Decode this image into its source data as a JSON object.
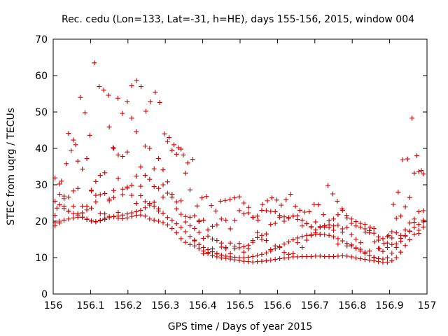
{
  "chart_data": {
    "type": "scatter",
    "title": "Rec. cedu (Lon=133, Lat=-31, h=HE), days 155-156, 2015, window 004",
    "xlabel": "GPS time / Days of year 2015",
    "ylabel": "STEC from uqrg / TECUs",
    "xlim": [
      156,
      157
    ],
    "ylim": [
      0,
      70
    ],
    "xticks": [
      "156",
      "156.1",
      "156.2",
      "156.3",
      "156.4",
      "156.5",
      "156.6",
      "156.7",
      "156.8",
      "156.9",
      "157"
    ],
    "yticks": [
      "0",
      "10",
      "20",
      "30",
      "40",
      "50",
      "60",
      "70"
    ],
    "grid": false,
    "legend": "none",
    "marker": "plus",
    "color": "#cc0000",
    "series": [
      {
        "x": [
          156.005,
          156.017,
          156.029,
          156.041,
          156.054,
          156.066,
          156.078,
          156.09,
          156.102,
          156.114,
          156.126,
          156.138,
          156.15,
          156.162,
          156.174,
          156.186,
          156.198,
          156.21,
          156.222,
          156.234,
          156.246,
          156.258,
          156.27,
          156.282,
          156.294,
          156.306,
          156.318,
          156.33,
          156.342,
          156.354,
          156.366,
          156.378,
          156.39,
          156.402,
          156.414,
          156.426,
          156.438,
          156.45,
          156.462,
          156.474,
          156.486,
          156.498,
          156.51,
          156.522,
          156.534,
          156.546,
          156.558,
          156.57,
          156.582,
          156.594,
          156.606,
          156.618,
          156.63,
          156.642,
          156.654,
          156.666,
          156.678,
          156.69,
          156.702,
          156.714,
          156.726,
          156.738,
          156.75,
          156.762,
          156.774,
          156.786,
          156.798,
          156.81,
          156.822,
          156.834,
          156.846,
          156.858,
          156.87,
          156.882,
          156.894,
          156.906,
          156.918,
          156.93,
          156.942,
          156.954,
          156.966,
          156.978,
          156.99
        ],
        "y": [
          19.6,
          20.0,
          20.3,
          20.6,
          20.9,
          21.1,
          21.1,
          20.6,
          20.1,
          19.9,
          20.3,
          20.8,
          21.3,
          21.2,
          20.8,
          20.7,
          20.9,
          21.3,
          21.6,
          21.7,
          21.4,
          20.6,
          20.3,
          20.0,
          19.6,
          19.0,
          18.0,
          16.8,
          15.2,
          14.2,
          13.6,
          13.2,
          12.4,
          11.8,
          11.1,
          10.5,
          10.2,
          9.9,
          9.8,
          9.6,
          9.4,
          9.2,
          9.0,
          8.9,
          8.8,
          8.9,
          9.0,
          9.1,
          9.3,
          9.5,
          9.7,
          9.9,
          10.0,
          10.2,
          10.2,
          10.3,
          10.3,
          10.3,
          10.4,
          10.4,
          10.3,
          10.3,
          10.3,
          10.4,
          10.5,
          10.4,
          10.2,
          9.9,
          9.7,
          9.5,
          9.3,
          9.1,
          8.9,
          8.7,
          8.7,
          9.1,
          10.0,
          11.5,
          13.3,
          14.9,
          16.4,
          17.5,
          18.4
        ]
      },
      {
        "x": [
          156.005,
          156.017,
          156.029,
          156.041,
          156.054,
          156.066,
          156.078,
          156.09,
          156.102,
          156.114,
          156.126,
          156.138,
          156.15,
          156.162,
          156.174,
          156.186,
          156.198,
          156.21,
          156.222,
          156.234,
          156.246,
          156.258,
          156.27,
          156.282,
          156.294,
          156.306,
          156.318,
          156.33,
          156.342,
          156.354,
          156.366,
          156.378,
          156.39,
          156.402,
          156.414,
          156.426,
          156.438,
          156.45,
          156.462,
          156.474,
          156.486,
          156.498,
          156.51,
          156.522,
          156.534,
          156.546,
          156.558,
          156.57,
          156.582,
          156.594,
          156.606,
          156.618,
          156.63,
          156.642,
          156.654,
          156.666,
          156.678,
          156.69,
          156.702,
          156.714,
          156.726,
          156.738,
          156.75,
          156.762,
          156.774,
          156.786,
          156.798,
          156.81,
          156.822,
          156.834,
          156.846,
          156.858,
          156.87,
          156.882,
          156.894,
          156.906,
          156.918,
          156.93,
          156.942,
          156.954,
          156.966,
          156.978,
          156.99
        ],
        "y": [
          25.5,
          24.5,
          23.5,
          22.8,
          22.1,
          21.7,
          21.1,
          20.5,
          20.0,
          19.8,
          20.1,
          20.5,
          21.0,
          21.3,
          21.4,
          21.7,
          22.0,
          22.3,
          22.6,
          23.0,
          23.7,
          24.4,
          24.0,
          23.4,
          22.2,
          21.0,
          20.2,
          19.3,
          18.3,
          17.1,
          15.8,
          14.6,
          13.6,
          12.8,
          12.2,
          11.6,
          11.1,
          10.7,
          10.4,
          10.2,
          10.1,
          10.0,
          10.0,
          10.1,
          10.3,
          10.6,
          10.9,
          11.3,
          11.8,
          12.4,
          13.0,
          13.7,
          14.3,
          14.9,
          15.4,
          15.8,
          16.1,
          16.3,
          16.4,
          16.4,
          16.3,
          16.1,
          15.7,
          15.2,
          14.6,
          13.9,
          13.2,
          12.5,
          11.8,
          11.1,
          10.5,
          10.0,
          9.7,
          9.6,
          10.0,
          11.2,
          12.8,
          14.5,
          16.1,
          17.3,
          18.3,
          19.1,
          19.8
        ]
      },
      {
        "x": [
          156.005,
          156.017,
          156.029,
          156.041,
          156.054,
          156.066,
          156.078,
          156.09,
          156.102,
          156.114,
          156.126,
          156.138,
          156.15,
          156.162,
          156.174,
          156.186,
          156.198,
          156.21,
          156.222,
          156.234,
          156.246,
          156.258,
          156.27,
          156.282,
          156.294,
          156.306,
          156.318,
          156.33,
          156.342,
          156.354,
          156.366,
          156.378,
          156.39,
          156.402,
          156.414,
          156.426,
          156.438,
          156.45,
          156.462,
          156.474,
          156.486,
          156.498,
          156.51,
          156.522,
          156.534,
          156.546,
          156.558,
          156.57,
          156.582,
          156.594,
          156.606,
          156.618,
          156.63,
          156.642,
          156.654,
          156.666,
          156.678,
          156.69,
          156.702,
          156.714,
          156.726,
          156.738,
          156.75,
          156.762,
          156.774,
          156.786,
          156.798,
          156.81,
          156.822,
          156.834,
          156.846,
          156.858,
          156.87,
          156.882,
          156.894,
          156.906,
          156.918,
          156.93,
          156.942,
          156.954,
          156.966,
          156.978,
          156.99
        ],
        "y": [
          18.7,
          19.5,
          24.1,
          26.6,
          28.3,
          22.1,
          24.1,
          23.1,
          23.6,
          25.3,
          22.1,
          22.0,
          26.1,
          26.5,
          22.4,
          27.3,
          29.1,
          27.1,
          24.9,
          27.0,
          25.4,
          24.9,
          25.2,
          22.8,
          26.6,
          27.7,
          26.6,
          23.4,
          21.9,
          19.8,
          18.8,
          14.8,
          16.9,
          11.1,
          11.4,
          12.4,
          11.0,
          12.9,
          12.8,
          11.1,
          12.4,
          12.7,
          11.5,
          12.4,
          14.2,
          16.9,
          16.1,
          16.5,
          19.1,
          19.4,
          21.1,
          20.0,
          20.8,
          21.4,
          21.5,
          18.7,
          19.3,
          18.5,
          17.6,
          18.3,
          18.8,
          19.0,
          17.5,
          13.7,
          17.0,
          13.2,
          13.5,
          12.7,
          12.3,
          11.5,
          11.8,
          10.1,
          12.5,
          11.7,
          12.8,
          15.4,
          16.8,
          16.1,
          15.9,
          17.2,
          19.7,
          16.6,
          20.3
        ]
      },
      {
        "x": [
          156.005,
          156.017,
          156.029,
          156.041,
          156.054,
          156.066,
          156.078,
          156.09,
          156.102,
          156.114,
          156.126,
          156.138,
          156.15,
          156.162,
          156.174,
          156.186,
          156.198,
          156.21,
          156.222,
          156.234,
          156.246,
          156.258,
          156.27,
          156.282,
          156.294,
          156.306,
          156.318,
          156.33,
          156.342,
          156.354,
          156.366,
          156.378,
          156.39,
          156.402,
          156.414,
          156.426,
          156.438,
          156.45,
          156.462,
          156.474,
          156.486,
          156.498,
          156.51,
          156.522,
          156.534,
          156.546,
          156.558,
          156.57,
          156.582,
          156.594,
          156.606,
          156.618,
          156.63,
          156.642,
          156.654,
          156.666,
          156.678,
          156.69,
          156.702,
          156.714,
          156.726,
          156.738,
          156.75,
          156.762,
          156.774,
          156.786,
          156.798,
          156.81,
          156.822,
          156.834,
          156.846,
          156.858,
          156.87,
          156.882,
          156.894,
          156.906,
          156.918,
          156.93,
          156.942,
          156.954,
          156.966,
          156.978,
          156.99
        ],
        "y": [
          21.6,
          27.4,
          26.2,
          22.7,
          24.1,
          29.0,
          22.3,
          24.1,
          28.5,
          27.1,
          27.3,
          27.6,
          25.6,
          28.4,
          31.7,
          28.8,
          29.4,
          29.9,
          32.4,
          29.6,
          32.6,
          31.5,
          29.5,
          29.0,
          30.0,
          30.8,
          27.4,
          25.3,
          25.6,
          21.3,
          21.1,
          18.0,
          20.1,
          15.3,
          15.9,
          15.1,
          14.7,
          14.0,
          12.4,
          14.0,
          13.1,
          13.9,
          13.0,
          13.4,
          14.7,
          15.5,
          15.0,
          14.7,
          12.2,
          13.2,
          12.8,
          11.4,
          10.9,
          11.1,
          14.1,
          12.8,
          14.8,
          16.1,
          16.8,
          16.4,
          18.7,
          20.1,
          20.6,
          21.8,
          23.0,
          20.9,
          20.6,
          19.9,
          18.4,
          17.9,
          16.8,
          16.7,
          15.7,
          15.2,
          14.0,
          13.6,
          13.8,
          15.3,
          17.6,
          19.5,
          20.6,
          22.6,
          22.9
        ]
      },
      {
        "x": [
          156.005,
          156.017,
          156.029,
          156.041,
          156.054,
          156.066,
          156.078,
          156.09,
          156.102,
          156.114,
          156.126,
          156.138,
          156.15,
          156.162,
          156.174,
          156.186,
          156.198,
          156.21,
          156.222,
          156.234,
          156.246,
          156.258,
          156.27,
          156.282,
          156.294,
          156.306,
          156.318,
          156.33,
          156.342,
          156.354,
          156.366,
          156.378,
          156.39,
          156.402,
          156.414,
          156.426,
          156.438,
          156.45,
          156.462,
          156.474,
          156.486,
          156.498,
          156.51,
          156.522,
          156.534,
          156.546,
          156.558,
          156.57,
          156.582,
          156.594,
          156.606,
          156.618,
          156.63,
          156.642,
          156.654,
          156.666,
          156.678,
          156.69,
          156.702,
          156.714,
          156.726,
          156.738,
          156.75,
          156.762,
          156.774,
          156.786,
          156.798,
          156.81,
          156.822,
          156.834,
          156.846,
          156.858,
          156.87,
          156.882,
          156.894,
          156.906,
          156.918,
          156.93,
          156.942,
          156.954,
          156.966,
          156.978,
          156.99
        ],
        "y": [
          31.9,
          30.2,
          26.9,
          44.1,
          42.3,
          36.5,
          34.3,
          37.2,
          28.3,
          30.9,
          32.6,
          33.3,
          45.9,
          40.0,
          38.2,
          37.8,
          39.0,
          48.3,
          44.6,
          34.9,
          40.6,
          40.0,
          34.4,
          37.2,
          34.1,
          41.9,
          39.5,
          38.4,
          39.8,
          33.2,
          28.6,
          21.5,
          19.9,
          20.3,
          17.6,
          18.6,
          19.0,
          20.6,
          20.3,
          17.9,
          20.2,
          22.9,
          22.0,
          22.3,
          21.1,
          21.4,
          23.0,
          22.9,
          22.7,
          22.6,
          21.6,
          21.2,
          21.0,
          21.4,
          20.5,
          20.3,
          19.4,
          18.4,
          19.8,
          18.5,
          18.4,
          18.3,
          18.7,
          18.9,
          17.9,
          18.3,
          19.4,
          18.7,
          19.4,
          19.1,
          17.4,
          18.0,
          14.8,
          15.2,
          15.8,
          17.1,
          20.8,
          21.4,
          23.9,
          26.5,
          33.2,
          33.6,
          33.0
        ]
      },
      {
        "x": [
          156.01,
          156.022,
          156.035,
          156.048,
          156.06,
          156.073,
          156.085,
          156.098,
          156.11,
          156.123,
          156.135,
          156.148,
          156.16,
          156.173,
          156.185,
          156.198,
          156.21,
          156.223,
          156.235,
          156.248,
          156.26,
          156.273,
          156.285,
          156.298,
          156.31,
          156.323,
          156.335,
          156.348,
          156.36,
          156.373,
          156.385,
          156.398,
          156.41,
          156.423,
          156.435,
          156.448,
          156.46,
          156.473,
          156.485,
          156.498,
          156.51,
          156.523,
          156.535,
          156.548,
          156.56,
          156.573,
          156.585,
          156.598,
          156.61,
          156.623,
          156.635,
          156.648,
          156.66,
          156.673,
          156.685,
          156.698,
          156.71,
          156.723,
          156.735,
          156.748,
          156.76,
          156.773,
          156.785,
          156.798,
          156.81,
          156.823,
          156.835,
          156.848,
          156.86,
          156.873,
          156.885,
          156.898,
          156.91,
          156.923,
          156.935,
          156.948,
          156.96,
          156.973,
          156.985
        ],
        "y": [
          23.6,
          31.0,
          35.8,
          39.4,
          41.0,
          54.0,
          49.8,
          43.6,
          63.5,
          57.0,
          56.0,
          54.6,
          40.2,
          53.8,
          49.6,
          52.8,
          57.2,
          58.6,
          57.0,
          50.2,
          52.8,
          55.4,
          52.6,
          44.0,
          43.0,
          41.0,
          40.2,
          38.2,
          36.0,
          37.0,
          24.2,
          26.4,
          26.8,
          24.3,
          22.8,
          25.5,
          25.7,
          26.0,
          26.4,
          26.7,
          25.0,
          23.8,
          21.0,
          20.3,
          24.6,
          25.6,
          26.4,
          25.8,
          24.4,
          25.9,
          27.4,
          24.1,
          23.0,
          22.5,
          22.6,
          24.6,
          24.5,
          21.8,
          29.8,
          27.5,
          25.5,
          23.4,
          21.6,
          16.3,
          15.0,
          14.1,
          17.0,
          18.4,
          14.3,
          12.4,
          13.9,
          16.1,
          24.6,
          28.0,
          36.9,
          37.1,
          48.3,
          38.0,
          33.9
        ]
      }
    ]
  }
}
